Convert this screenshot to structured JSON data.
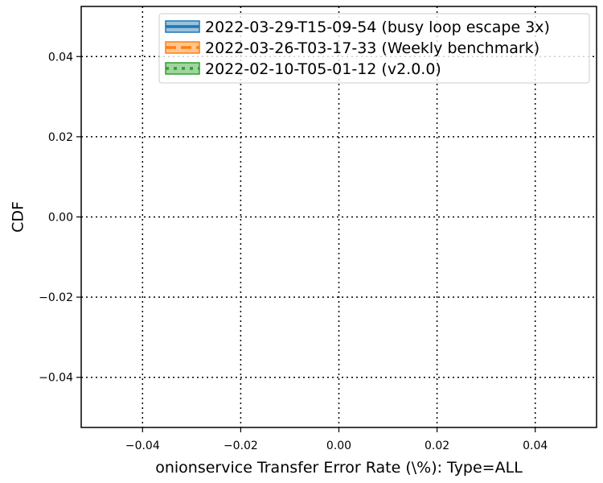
{
  "chart_data": {
    "type": "line",
    "title": "",
    "xlabel": "onionservice Transfer Error Rate (\\%): Type=ALL",
    "ylabel": "CDF",
    "xlim": [
      -0.0525,
      0.0525
    ],
    "ylim": [
      -0.0525,
      0.0525
    ],
    "xticks": [
      -0.04,
      -0.02,
      0.0,
      0.02,
      0.04
    ],
    "yticks": [
      -0.04,
      -0.02,
      0.0,
      0.02,
      0.04
    ],
    "xtick_labels": [
      "−0.04",
      "−0.02",
      "0.00",
      "0.02",
      "0.04"
    ],
    "ytick_labels": [
      "−0.04",
      "−0.02",
      "0.00",
      "0.02",
      "0.04"
    ],
    "grid": true,
    "legend_position": "top-right",
    "series": [
      {
        "name": "2022-03-29-T15-09-54 (busy loop escape 3x)",
        "color": "#1f77b4",
        "line_style": "solid",
        "x": [],
        "y": []
      },
      {
        "name": "2022-03-26-T03-17-33 (Weekly benchmark)",
        "color": "#ff7f0e",
        "line_style": "dashed",
        "x": [],
        "y": []
      },
      {
        "name": "2022-02-10-T05-01-12 (v2.0.0)",
        "color": "#2ca02c",
        "line_style": "dotted",
        "x": [],
        "y": []
      }
    ]
  }
}
